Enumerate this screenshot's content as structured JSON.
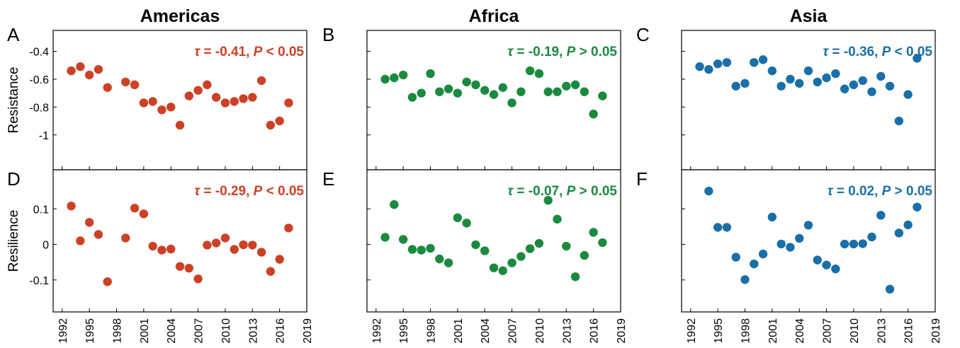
{
  "colors": {
    "americas": "#cc4125",
    "africa": "#1a8a3e",
    "asia": "#1a6fa8"
  },
  "row_labels": [
    "Resistance",
    "Resilience"
  ],
  "chart_data": [
    {
      "type": "scatter",
      "region": "Americas",
      "panel": "A",
      "title": "Americas",
      "ylabel": "Resistance",
      "annotation": {
        "tau": "-0.41",
        "p": "< 0.05"
      },
      "color": "#cc4125",
      "xlim": [
        1991,
        2019
      ],
      "ylim": [
        -1.25,
        -0.25
      ],
      "yticks": [
        -0.4,
        -0.6,
        -0.8,
        -1
      ],
      "ytick_labels": [
        "-0.4",
        "-0.6",
        "-0.8",
        "-1"
      ],
      "x": [
        1993,
        1994,
        1995,
        1996,
        1997,
        1999,
        2000,
        2001,
        2002,
        2003,
        2004,
        2005,
        2006,
        2007,
        2008,
        2009,
        2010,
        2011,
        2012,
        2013,
        2014,
        2015,
        2016,
        2017
      ],
      "y": [
        -0.54,
        -0.51,
        -0.57,
        -0.53,
        -0.66,
        -0.62,
        -0.64,
        -0.77,
        -0.76,
        -0.82,
        -0.8,
        -0.93,
        -0.72,
        -0.68,
        -0.64,
        -0.73,
        -0.77,
        -0.76,
        -0.74,
        -0.73,
        -0.61,
        -0.93,
        -0.9,
        -0.77
      ]
    },
    {
      "type": "scatter",
      "region": "Africa",
      "panel": "B",
      "title": "Africa",
      "ylabel": "",
      "annotation": {
        "tau": "-0.19",
        "p": "> 0.05"
      },
      "color": "#1a8a3e",
      "xlim": [
        1991,
        2019
      ],
      "ylim": [
        -1.25,
        -0.25
      ],
      "yticks": [
        -0.4,
        -0.6,
        -0.8,
        -1
      ],
      "ytick_labels": [],
      "x": [
        1993,
        1994,
        1995,
        1996,
        1997,
        1998,
        1999,
        2000,
        2001,
        2002,
        2003,
        2004,
        2005,
        2006,
        2007,
        2008,
        2009,
        2010,
        2011,
        2012,
        2013,
        2014,
        2015,
        2016,
        2017
      ],
      "y": [
        -0.6,
        -0.59,
        -0.57,
        -0.73,
        -0.7,
        -0.56,
        -0.69,
        -0.67,
        -0.7,
        -0.62,
        -0.64,
        -0.68,
        -0.71,
        -0.66,
        -0.77,
        -0.69,
        -0.54,
        -0.56,
        -0.69,
        -0.69,
        -0.65,
        -0.64,
        -0.69,
        -0.85,
        -0.72
      ]
    },
    {
      "type": "scatter",
      "region": "Asia",
      "panel": "C",
      "title": "Asia",
      "ylabel": "",
      "annotation": {
        "tau": "-0.36",
        "p": "< 0.05"
      },
      "color": "#1a6fa8",
      "xlim": [
        1991,
        2019
      ],
      "ylim": [
        -1.25,
        -0.25
      ],
      "yticks": [
        -0.4,
        -0.6,
        -0.8,
        -1
      ],
      "ytick_labels": [],
      "x": [
        1993,
        1994,
        1995,
        1996,
        1997,
        1998,
        1999,
        2000,
        2001,
        2002,
        2003,
        2004,
        2005,
        2006,
        2007,
        2008,
        2009,
        2010,
        2011,
        2012,
        2013,
        2014,
        2015,
        2016,
        2017
      ],
      "y": [
        -0.51,
        -0.53,
        -0.49,
        -0.48,
        -0.65,
        -0.63,
        -0.48,
        -0.46,
        -0.54,
        -0.65,
        -0.6,
        -0.63,
        -0.54,
        -0.62,
        -0.59,
        -0.56,
        -0.67,
        -0.64,
        -0.61,
        -0.69,
        -0.58,
        -0.65,
        -0.9,
        -0.71,
        -0.45
      ]
    },
    {
      "type": "scatter",
      "region": "Americas",
      "panel": "D",
      "title": "",
      "ylabel": "Resilience",
      "annotation": {
        "tau": "-0.29",
        "p": "< 0.05"
      },
      "color": "#cc4125",
      "xlim": [
        1991,
        2019
      ],
      "ylim": [
        -0.19,
        0.21
      ],
      "yticks": [
        0.1,
        0,
        -0.1
      ],
      "ytick_labels": [
        "0.1",
        "0",
        "-0.1"
      ],
      "xticks": [
        1992,
        1995,
        1998,
        2001,
        2004,
        2007,
        2010,
        2013,
        2016,
        2019
      ],
      "xtick_labels": [
        "1992",
        "1995",
        "1998",
        "2001",
        "2004",
        "2007",
        "2010",
        "2013",
        "2016",
        "2019"
      ],
      "x": [
        1993,
        1994,
        1995,
        1996,
        1997,
        1999,
        2000,
        2001,
        2002,
        2003,
        2004,
        2005,
        2006,
        2007,
        2008,
        2009,
        2010,
        2011,
        2012,
        2013,
        2014,
        2015,
        2016,
        2017
      ],
      "y": [
        0.108,
        0.01,
        0.062,
        0.028,
        -0.105,
        0.018,
        0.102,
        0.086,
        -0.005,
        -0.016,
        -0.013,
        -0.062,
        -0.067,
        -0.097,
        -0.002,
        0.004,
        0.018,
        -0.014,
        -0.001,
        -0.002,
        -0.022,
        -0.076,
        -0.042,
        0.046
      ]
    },
    {
      "type": "scatter",
      "region": "Africa",
      "panel": "E",
      "title": "",
      "ylabel": "",
      "annotation": {
        "tau": "-0.07",
        "p": "> 0.05"
      },
      "color": "#1a8a3e",
      "xlim": [
        1991,
        2019
      ],
      "ylim": [
        -0.19,
        0.21
      ],
      "yticks": [
        0.1,
        0,
        -0.1
      ],
      "ytick_labels": [],
      "xticks": [
        1992,
        1995,
        1998,
        2001,
        2004,
        2007,
        2010,
        2013,
        2016,
        2019
      ],
      "xtick_labels": [
        "1992",
        "1995",
        "1998",
        "2001",
        "2004",
        "2007",
        "2010",
        "2013",
        "2016",
        "2019"
      ],
      "x": [
        1993,
        1994,
        1995,
        1996,
        1997,
        1998,
        1999,
        2000,
        2001,
        2002,
        2003,
        2004,
        2005,
        2006,
        2007,
        2008,
        2009,
        2010,
        2011,
        2012,
        2013,
        2014,
        2015,
        2016,
        2017
      ],
      "y": [
        0.02,
        0.112,
        0.014,
        -0.014,
        -0.016,
        -0.011,
        -0.041,
        -0.052,
        0.075,
        0.06,
        -0.001,
        -0.018,
        -0.066,
        -0.074,
        -0.052,
        -0.034,
        -0.012,
        0.003,
        0.124,
        0.071,
        -0.005,
        -0.091,
        -0.031,
        0.034,
        0.005
      ]
    },
    {
      "type": "scatter",
      "region": "Asia",
      "panel": "F",
      "title": "",
      "ylabel": "",
      "annotation": {
        "tau": "0.02",
        "p": "> 0.05"
      },
      "color": "#1a6fa8",
      "xlim": [
        1991,
        2019
      ],
      "ylim": [
        -0.19,
        0.21
      ],
      "yticks": [
        0.1,
        0,
        -0.1
      ],
      "ytick_labels": [],
      "xticks": [
        1992,
        1995,
        1998,
        2001,
        2004,
        2007,
        2010,
        2013,
        2016,
        2019
      ],
      "xtick_labels": [
        "1992",
        "1995",
        "1998",
        "2001",
        "2004",
        "2007",
        "2010",
        "2013",
        "2016",
        "2019"
      ],
      "x": [
        1994,
        1995,
        1996,
        1997,
        1998,
        1999,
        2000,
        2001,
        2002,
        2003,
        2004,
        2005,
        2006,
        2007,
        2008,
        2009,
        2010,
        2011,
        2012,
        2013,
        2014,
        2015,
        2016,
        2017
      ],
      "y": [
        0.15,
        0.048,
        0.048,
        -0.036,
        -0.099,
        -0.055,
        -0.027,
        0.077,
        0.001,
        -0.008,
        0.017,
        0.054,
        -0.044,
        -0.058,
        -0.069,
        0.001,
        0.001,
        0.002,
        0.021,
        0.082,
        -0.126,
        0.032,
        0.055,
        0.105
      ]
    }
  ]
}
